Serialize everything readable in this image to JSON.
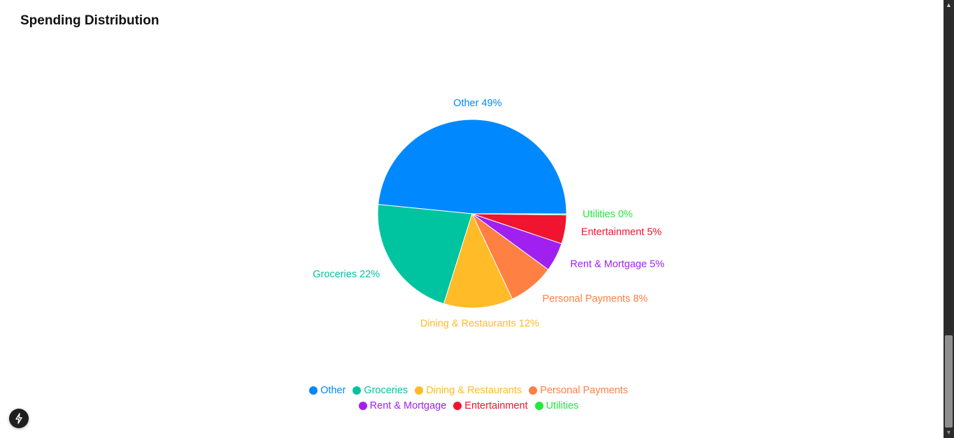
{
  "page": {
    "title": "Spending Distribution"
  },
  "chart_data": {
    "type": "pie",
    "title": "",
    "slices": [
      {
        "label": "Other",
        "value": 49,
        "color": "#0088FE",
        "slice_label": "Other 49%"
      },
      {
        "label": "Groceries",
        "value": 22,
        "color": "#00C49F",
        "slice_label": "Groceries 22%"
      },
      {
        "label": "Dining & Restaurants",
        "value": 12,
        "color": "#FFBB28",
        "slice_label": "Dining & Restaurants 12%"
      },
      {
        "label": "Personal Payments",
        "value": 8,
        "color": "#FF8042",
        "slice_label": "Personal Payments 8%"
      },
      {
        "label": "Rent & Mortgage",
        "value": 5,
        "color": "#A020F0",
        "slice_label": "Rent & Mortgage 5%"
      },
      {
        "label": "Entertainment",
        "value": 5,
        "color": "#F0142F",
        "slice_label": "Entertainment 5%"
      },
      {
        "label": "Utilities",
        "value": 0.2,
        "color": "#24E93A",
        "slice_label": "Utilities 0%"
      }
    ],
    "legend": {
      "placement": "bottom",
      "entries": [
        "Other",
        "Groceries",
        "Dining & Restaurants",
        "Personal Payments",
        "Rent & Mortgage",
        "Entertainment",
        "Utilities"
      ]
    }
  },
  "fab": {
    "icon": "lightning-icon"
  },
  "scrollbar": {
    "up_icon": "scroll-up-arrow-icon",
    "down_icon": "scroll-down-arrow-icon"
  }
}
